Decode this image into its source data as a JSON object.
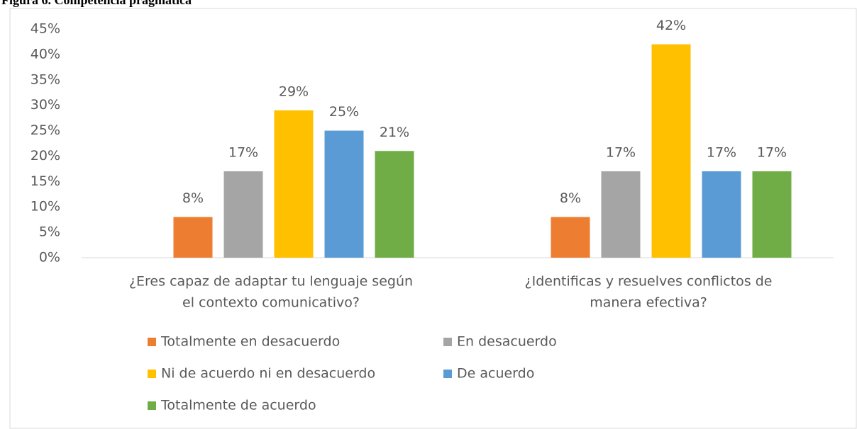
{
  "chart_data": {
    "type": "bar",
    "caption": "Figura 6. Competencia pragmática",
    "categories": [
      [
        "¿Eres capaz de adaptar tu lenguaje según",
        "el contexto comunicativo?"
      ],
      [
        "¿Identificas y resuelves conflictos de",
        "manera efectiva?"
      ]
    ],
    "series": [
      {
        "name": "Totalmente en desacuerdo",
        "color": "#ed7d31",
        "values": [
          8,
          8
        ],
        "value_labels": [
          "8%",
          "8%"
        ]
      },
      {
        "name": "En desacuerdo",
        "color": "#a5a5a5",
        "values": [
          17,
          17
        ],
        "value_labels": [
          "17%",
          "17%"
        ]
      },
      {
        "name": "Ni de acuerdo ni en desacuerdo",
        "color": "#ffc000",
        "values": [
          29,
          42
        ],
        "value_labels": [
          "29%",
          "42%"
        ]
      },
      {
        "name": "De acuerdo",
        "color": "#5b9bd5",
        "values": [
          25,
          17
        ],
        "value_labels": [
          "25%",
          "17%"
        ]
      },
      {
        "name": "Totalmente de acuerdo",
        "color": "#70ad47",
        "values": [
          21,
          17
        ],
        "value_labels": [
          "21%",
          "17%"
        ]
      }
    ],
    "ylim": [
      0,
      45
    ],
    "yticks": [
      {
        "value": 0,
        "label": "0%"
      },
      {
        "value": 5,
        "label": "5%"
      },
      {
        "value": 10,
        "label": "10%"
      },
      {
        "value": 15,
        "label": "15%"
      },
      {
        "value": 20,
        "label": "20%"
      },
      {
        "value": 25,
        "label": "25%"
      },
      {
        "value": 30,
        "label": "30%"
      },
      {
        "value": 35,
        "label": "35%"
      },
      {
        "value": 40,
        "label": "40%"
      },
      {
        "value": 45,
        "label": "45%"
      }
    ],
    "grid": false,
    "legend": "bottom"
  }
}
